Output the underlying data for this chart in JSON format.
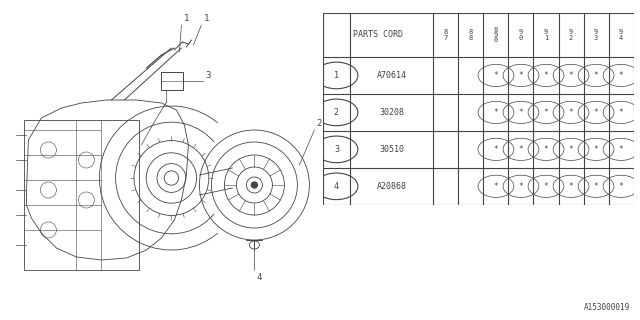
{
  "diagram_id": "A153000019",
  "bg_color": "#ffffff",
  "line_color": "#444444",
  "table": {
    "parts_cord_label": "PARTS CORD",
    "year_headers": [
      "8\n7",
      "8\n8",
      "8\n9\n0",
      "9\n0",
      "9\n1",
      "9\n2",
      "9\n3",
      "9\n4"
    ],
    "rows": [
      {
        "num": "1",
        "part": "A70614",
        "marks": [
          false,
          false,
          true,
          true,
          true,
          true,
          true,
          true
        ]
      },
      {
        "num": "2",
        "part": "30208",
        "marks": [
          false,
          false,
          true,
          true,
          true,
          true,
          true,
          true
        ]
      },
      {
        "num": "3",
        "part": "30510",
        "marks": [
          false,
          false,
          true,
          true,
          true,
          true,
          true,
          true
        ]
      },
      {
        "num": "4",
        "part": "A20868",
        "marks": [
          false,
          false,
          true,
          true,
          true,
          true,
          true,
          true
        ]
      }
    ]
  }
}
